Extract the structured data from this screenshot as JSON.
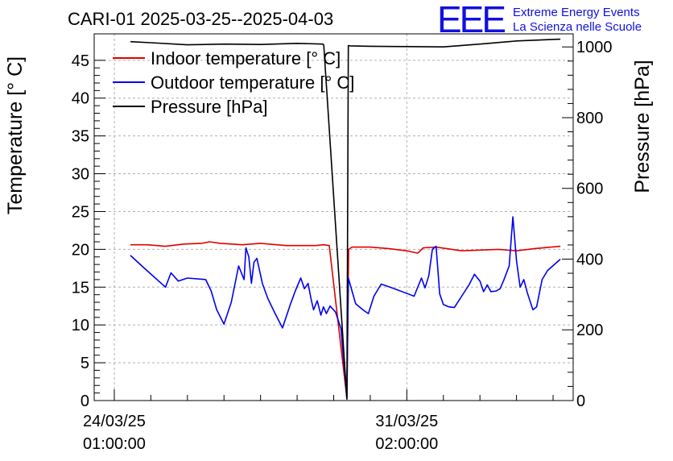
{
  "header": {
    "title": "CARI-01 2025-03-25--2025-04-03",
    "logo_text": "EEE",
    "logo_line1": "Extreme Energy Events",
    "logo_line2": "La Scienza nelle Scuole"
  },
  "colors": {
    "indoor": "#e00000",
    "outdoor": "#0000ee",
    "pressure": "#000000",
    "logo": "#1010e0",
    "grid": "#b0b0b0"
  },
  "chart_data": {
    "type": "line",
    "title": "CARI-01 2025-03-25--2025-04-03",
    "ylabel": "Temperature [° C]",
    "y2label": "Pressure [hPa]",
    "ylim": [
      0,
      48.5
    ],
    "y2lim": [
      0,
      1037
    ],
    "xlim": [
      -0.55,
      12.55
    ],
    "x_unit": "days since 2025-03-24 01:00:00",
    "yticks": [
      0,
      5,
      10,
      15,
      20,
      25,
      30,
      35,
      40,
      45
    ],
    "ytick_labels": [
      "0",
      "5",
      "10",
      "15",
      "20",
      "25",
      "30",
      "35",
      "40",
      "45"
    ],
    "y2ticks": [
      0,
      200,
      400,
      600,
      800,
      1000
    ],
    "y2tick_labels": [
      "0",
      "200",
      "400",
      "600",
      "800",
      "1000"
    ],
    "xticks": [
      0,
      8
    ],
    "xtick_labels": [
      [
        "24/03/25",
        "01:00:00"
      ],
      [
        "31/03/25",
        "02:00:00"
      ]
    ],
    "grid": true,
    "legend_position": "top-left",
    "series": [
      {
        "name": "Indoor temperature [° C]",
        "axis": "left",
        "color": "#e00000",
        "x": [
          0.44,
          0.9,
          1.4,
          1.9,
          2.4,
          2.6,
          2.9,
          3.5,
          4.0,
          4.7,
          5.5,
          5.72,
          5.88,
          6.36,
          6.41,
          6.5,
          7.0,
          7.5,
          8.0,
          8.3,
          8.45,
          8.8,
          9.5,
          10.0,
          10.5,
          11.0,
          11.5,
          12.2
        ],
        "y": [
          20.6,
          20.6,
          20.4,
          20.7,
          20.8,
          21.0,
          20.8,
          20.6,
          20.8,
          20.5,
          20.5,
          20.6,
          20.5,
          0.3,
          20.0,
          20.3,
          20.3,
          20.1,
          19.8,
          19.5,
          20.2,
          20.3,
          19.8,
          19.9,
          20.0,
          19.8,
          20.1,
          20.4
        ]
      },
      {
        "name": "Outdoor temperature [° C]",
        "axis": "left",
        "color": "#0000ee",
        "x": [
          0.44,
          0.8,
          1.4,
          1.55,
          1.75,
          2.0,
          2.5,
          2.65,
          2.8,
          3.0,
          3.2,
          3.4,
          3.55,
          3.6,
          3.68,
          3.75,
          3.82,
          3.9,
          4.05,
          4.2,
          4.4,
          4.6,
          4.8,
          4.95,
          5.1,
          5.2,
          5.3,
          5.38,
          5.45,
          5.55,
          5.65,
          5.72,
          5.8,
          5.9,
          6.05,
          6.2,
          6.36,
          6.4,
          6.6,
          6.8,
          6.95,
          7.1,
          7.3,
          7.6,
          8.2,
          8.4,
          8.5,
          8.6,
          8.7,
          8.8,
          8.9,
          9.0,
          9.15,
          9.3,
          9.5,
          9.7,
          9.85,
          9.9,
          10.0,
          10.1,
          10.2,
          10.3,
          10.45,
          10.55,
          10.65,
          10.8,
          10.9,
          11.0,
          11.1,
          11.2,
          11.3,
          11.45,
          11.55,
          11.7,
          11.85,
          12.2
        ],
        "y": [
          19.2,
          17.6,
          15.0,
          16.9,
          15.8,
          16.2,
          16.0,
          14.5,
          12.0,
          10.1,
          13.0,
          17.8,
          16.0,
          20.2,
          19.0,
          15.5,
          18.3,
          18.8,
          15.5,
          13.5,
          11.5,
          9.6,
          12.5,
          14.5,
          16.2,
          14.8,
          15.5,
          13.5,
          12.0,
          13.2,
          11.3,
          12.4,
          11.5,
          12.5,
          11.7,
          9.5,
          0.3,
          16.2,
          12.8,
          12.0,
          11.5,
          13.8,
          15.4,
          14.9,
          13.8,
          16.2,
          14.9,
          16.5,
          20.0,
          20.4,
          14.1,
          12.7,
          12.4,
          12.3,
          13.8,
          15.3,
          16.7,
          16.4,
          15.8,
          14.4,
          15.3,
          14.4,
          14.5,
          14.8,
          15.9,
          17.8,
          24.3,
          18.5,
          15.0,
          16.0,
          14.2,
          12.0,
          12.4,
          16.0,
          17.2,
          18.7
        ]
      },
      {
        "name": "Pressure [hPa]",
        "axis": "right",
        "color": "#000000",
        "x": [
          0.44,
          1.0,
          2.0,
          3.0,
          4.0,
          5.0,
          5.7,
          5.73,
          6.36,
          6.4,
          6.45,
          7.0,
          8.0,
          9.0,
          10.0,
          11.0,
          12.2
        ],
        "y": [
          1015,
          1012,
          1006,
          1008,
          1007,
          1010,
          1008,
          1005,
          4,
          1004,
          1003,
          1002,
          1001,
          1000,
          1008,
          1017,
          1022
        ]
      }
    ]
  }
}
